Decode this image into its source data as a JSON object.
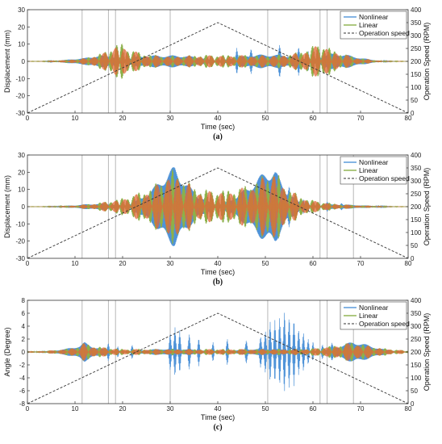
{
  "colors": {
    "nonlinear": "#4f93d8",
    "linear": "#8cb04a",
    "overlay": "#e0683a",
    "speed": "#333333",
    "vline": "#9a9a9a"
  },
  "chart_data": [
    {
      "id": "a",
      "type": "line",
      "caption": "(a)",
      "xlabel": "Time (sec)",
      "ylabel": "Displacement (mm)",
      "y2label": "Operation Speed (RPM)",
      "xlim": [
        0,
        80
      ],
      "ylim": [
        -30,
        30
      ],
      "y2lim": [
        0,
        400
      ],
      "xticks": [
        0,
        10,
        20,
        30,
        40,
        50,
        60,
        70,
        80
      ],
      "yticks": [
        -30,
        -20,
        -10,
        0,
        10,
        20,
        30
      ],
      "y2ticks": [
        0,
        50,
        100,
        150,
        200,
        250,
        300,
        350,
        400
      ],
      "vlines": [
        11.5,
        17,
        18.5,
        30,
        50.5,
        61.5,
        63
      ],
      "legend": {
        "position": "top-right",
        "entries": [
          "Nonlinear",
          "Linear",
          "Operation speed"
        ]
      },
      "envelope": {
        "x": [
          0,
          4,
          8,
          12,
          16,
          18,
          19.5,
          21,
          24,
          28,
          32,
          36,
          40,
          44,
          48,
          52,
          56,
          58,
          60,
          61.5,
          63,
          66,
          70,
          74,
          80
        ],
        "amp": [
          0.1,
          0.3,
          0.9,
          2.0,
          5.5,
          9.5,
          12,
          8.5,
          5,
          3.5,
          3.5,
          4,
          4,
          4,
          4,
          4,
          5,
          7,
          9.5,
          11.5,
          9,
          5,
          2,
          0.5,
          0.1
        ]
      },
      "series": [
        {
          "name": "Nonlinear",
          "style": "solid",
          "spikes": [
            [
              44,
              -6
            ],
            [
              47,
              5
            ],
            [
              53,
              6
            ],
            [
              57,
              -6
            ],
            [
              59,
              5
            ]
          ]
        },
        {
          "name": "Linear",
          "style": "solid"
        },
        {
          "name": "Operation speed",
          "style": "dashed",
          "x": [
            0,
            40,
            80
          ],
          "y": [
            0,
            350,
            0
          ]
        }
      ]
    },
    {
      "id": "b",
      "type": "line",
      "caption": "(b)",
      "xlabel": "Time (sec)",
      "ylabel": "Displacement (mm)",
      "y2label": "Operation Speed (RPM)",
      "xlim": [
        0,
        80
      ],
      "ylim": [
        -30,
        30
      ],
      "y2lim": [
        0,
        400
      ],
      "xticks": [
        0,
        10,
        20,
        30,
        40,
        50,
        60,
        70,
        80
      ],
      "yticks": [
        -30,
        -20,
        -10,
        0,
        10,
        20,
        30
      ],
      "y2ticks": [
        0,
        50,
        100,
        150,
        200,
        250,
        300,
        350,
        400
      ],
      "vlines": [
        11.5,
        17,
        18.5,
        61.5,
        63,
        68.5
      ],
      "legend": {
        "position": "top-right",
        "entries": [
          "Nonlinear",
          "Linear",
          "Operation speed"
        ]
      },
      "envelope": {
        "x": [
          0,
          6,
          10,
          14,
          18,
          22,
          26,
          29,
          31,
          33,
          36,
          40,
          44,
          48,
          50,
          52,
          54,
          57,
          60,
          63,
          66,
          70,
          76,
          80
        ],
        "amp": [
          0.1,
          0.3,
          0.8,
          2,
          4,
          7,
          12,
          19,
          24,
          17,
          11,
          10,
          11,
          16,
          21,
          23,
          14,
          7,
          4,
          2.5,
          1.5,
          0.8,
          0.3,
          0.1
        ]
      },
      "series": [
        {
          "name": "Nonlinear",
          "style": "solid",
          "spikes": [
            [
              55,
              6
            ],
            [
              58,
              3
            ],
            [
              59,
              -2.5
            ],
            [
              63,
              2
            ],
            [
              66,
              1.2
            ]
          ]
        },
        {
          "name": "Linear",
          "style": "solid"
        },
        {
          "name": "Operation speed",
          "style": "dashed",
          "x": [
            0,
            40,
            80
          ],
          "y": [
            0,
            350,
            0
          ]
        }
      ]
    },
    {
      "id": "c",
      "type": "line",
      "caption": "(c)",
      "xlabel": "Time (sec)",
      "ylabel": "Angle (Degree)",
      "y2label": "Operation Speed (RPM)",
      "xlim": [
        0,
        80
      ],
      "ylim": [
        -8,
        8
      ],
      "y2lim": [
        0,
        400
      ],
      "xticks": [
        0,
        10,
        20,
        30,
        40,
        50,
        60,
        70,
        80
      ],
      "yticks": [
        -8,
        -6,
        -4,
        -2,
        0,
        2,
        4,
        6,
        8
      ],
      "y2ticks": [
        0,
        50,
        100,
        150,
        200,
        250,
        300,
        350,
        400
      ],
      "vlines": [
        11.5,
        17,
        18.5,
        30,
        50.5,
        61.5,
        63,
        68.5
      ],
      "legend": {
        "position": "top-right",
        "entries": [
          "Nonlinear",
          "Linear",
          "Operation speed"
        ]
      },
      "envelope": {
        "x": [
          0,
          4,
          8,
          11,
          12,
          14,
          17,
          20,
          24,
          28,
          32,
          36,
          40,
          44,
          48,
          52,
          56,
          60,
          63,
          66,
          68.5,
          70,
          74,
          80
        ],
        "amp": [
          0.1,
          0.2,
          0.5,
          1.0,
          1.6,
          1.0,
          0.7,
          0.5,
          0.5,
          0.5,
          0.5,
          0.5,
          0.5,
          0.5,
          0.5,
          0.5,
          0.5,
          0.6,
          0.9,
          1.3,
          1.7,
          1.4,
          0.7,
          0.2
        ]
      },
      "series": [
        {
          "name": "Nonlinear",
          "style": "solid",
          "spikes": [
            [
              17,
              -1.2
            ],
            [
              19,
              0.8
            ],
            [
              22,
              1.0
            ],
            [
              30,
              2.5
            ],
            [
              31,
              3.5
            ],
            [
              32,
              -3
            ],
            [
              34,
              2.5
            ],
            [
              36,
              -2
            ],
            [
              39,
              1.5
            ],
            [
              42,
              2
            ],
            [
              46,
              -1.5
            ],
            [
              49,
              2
            ],
            [
              50,
              3
            ],
            [
              51,
              -4.5
            ],
            [
              52,
              4.5
            ],
            [
              53,
              -5
            ],
            [
              54,
              6.3
            ],
            [
              55,
              -5.5
            ],
            [
              56,
              5
            ],
            [
              57,
              -3.5
            ],
            [
              58,
              3
            ],
            [
              59,
              -2
            ],
            [
              60,
              1.5
            ],
            [
              62,
              1
            ],
            [
              64,
              -0.8
            ]
          ]
        },
        {
          "name": "Linear",
          "style": "solid"
        },
        {
          "name": "Operation speed",
          "style": "dashed",
          "x": [
            0,
            40,
            80
          ],
          "y": [
            0,
            350,
            0
          ]
        }
      ]
    }
  ]
}
